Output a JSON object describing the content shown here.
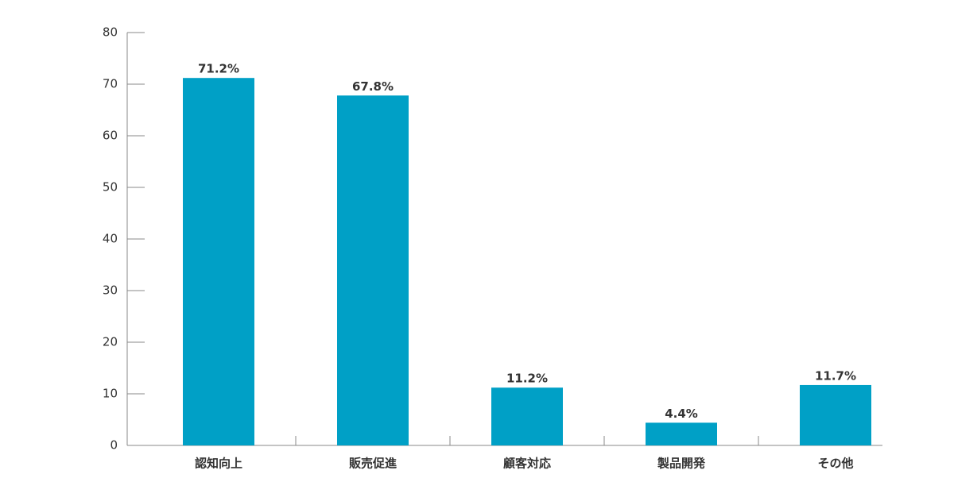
{
  "chart_data": {
    "type": "bar",
    "categories": [
      "認知向上",
      "販売促進",
      "顧客対応",
      "製品開発",
      "その他"
    ],
    "values": [
      71.2,
      67.8,
      11.2,
      4.4,
      11.7
    ],
    "value_labels": [
      "71.2%",
      "67.8%",
      "11.2%",
      "4.4%",
      "11.7%"
    ],
    "color": "#00a0c6",
    "ylim": [
      0,
      80
    ],
    "yticks": [
      0,
      10,
      20,
      30,
      40,
      50,
      60,
      70,
      80
    ],
    "grid": false
  }
}
